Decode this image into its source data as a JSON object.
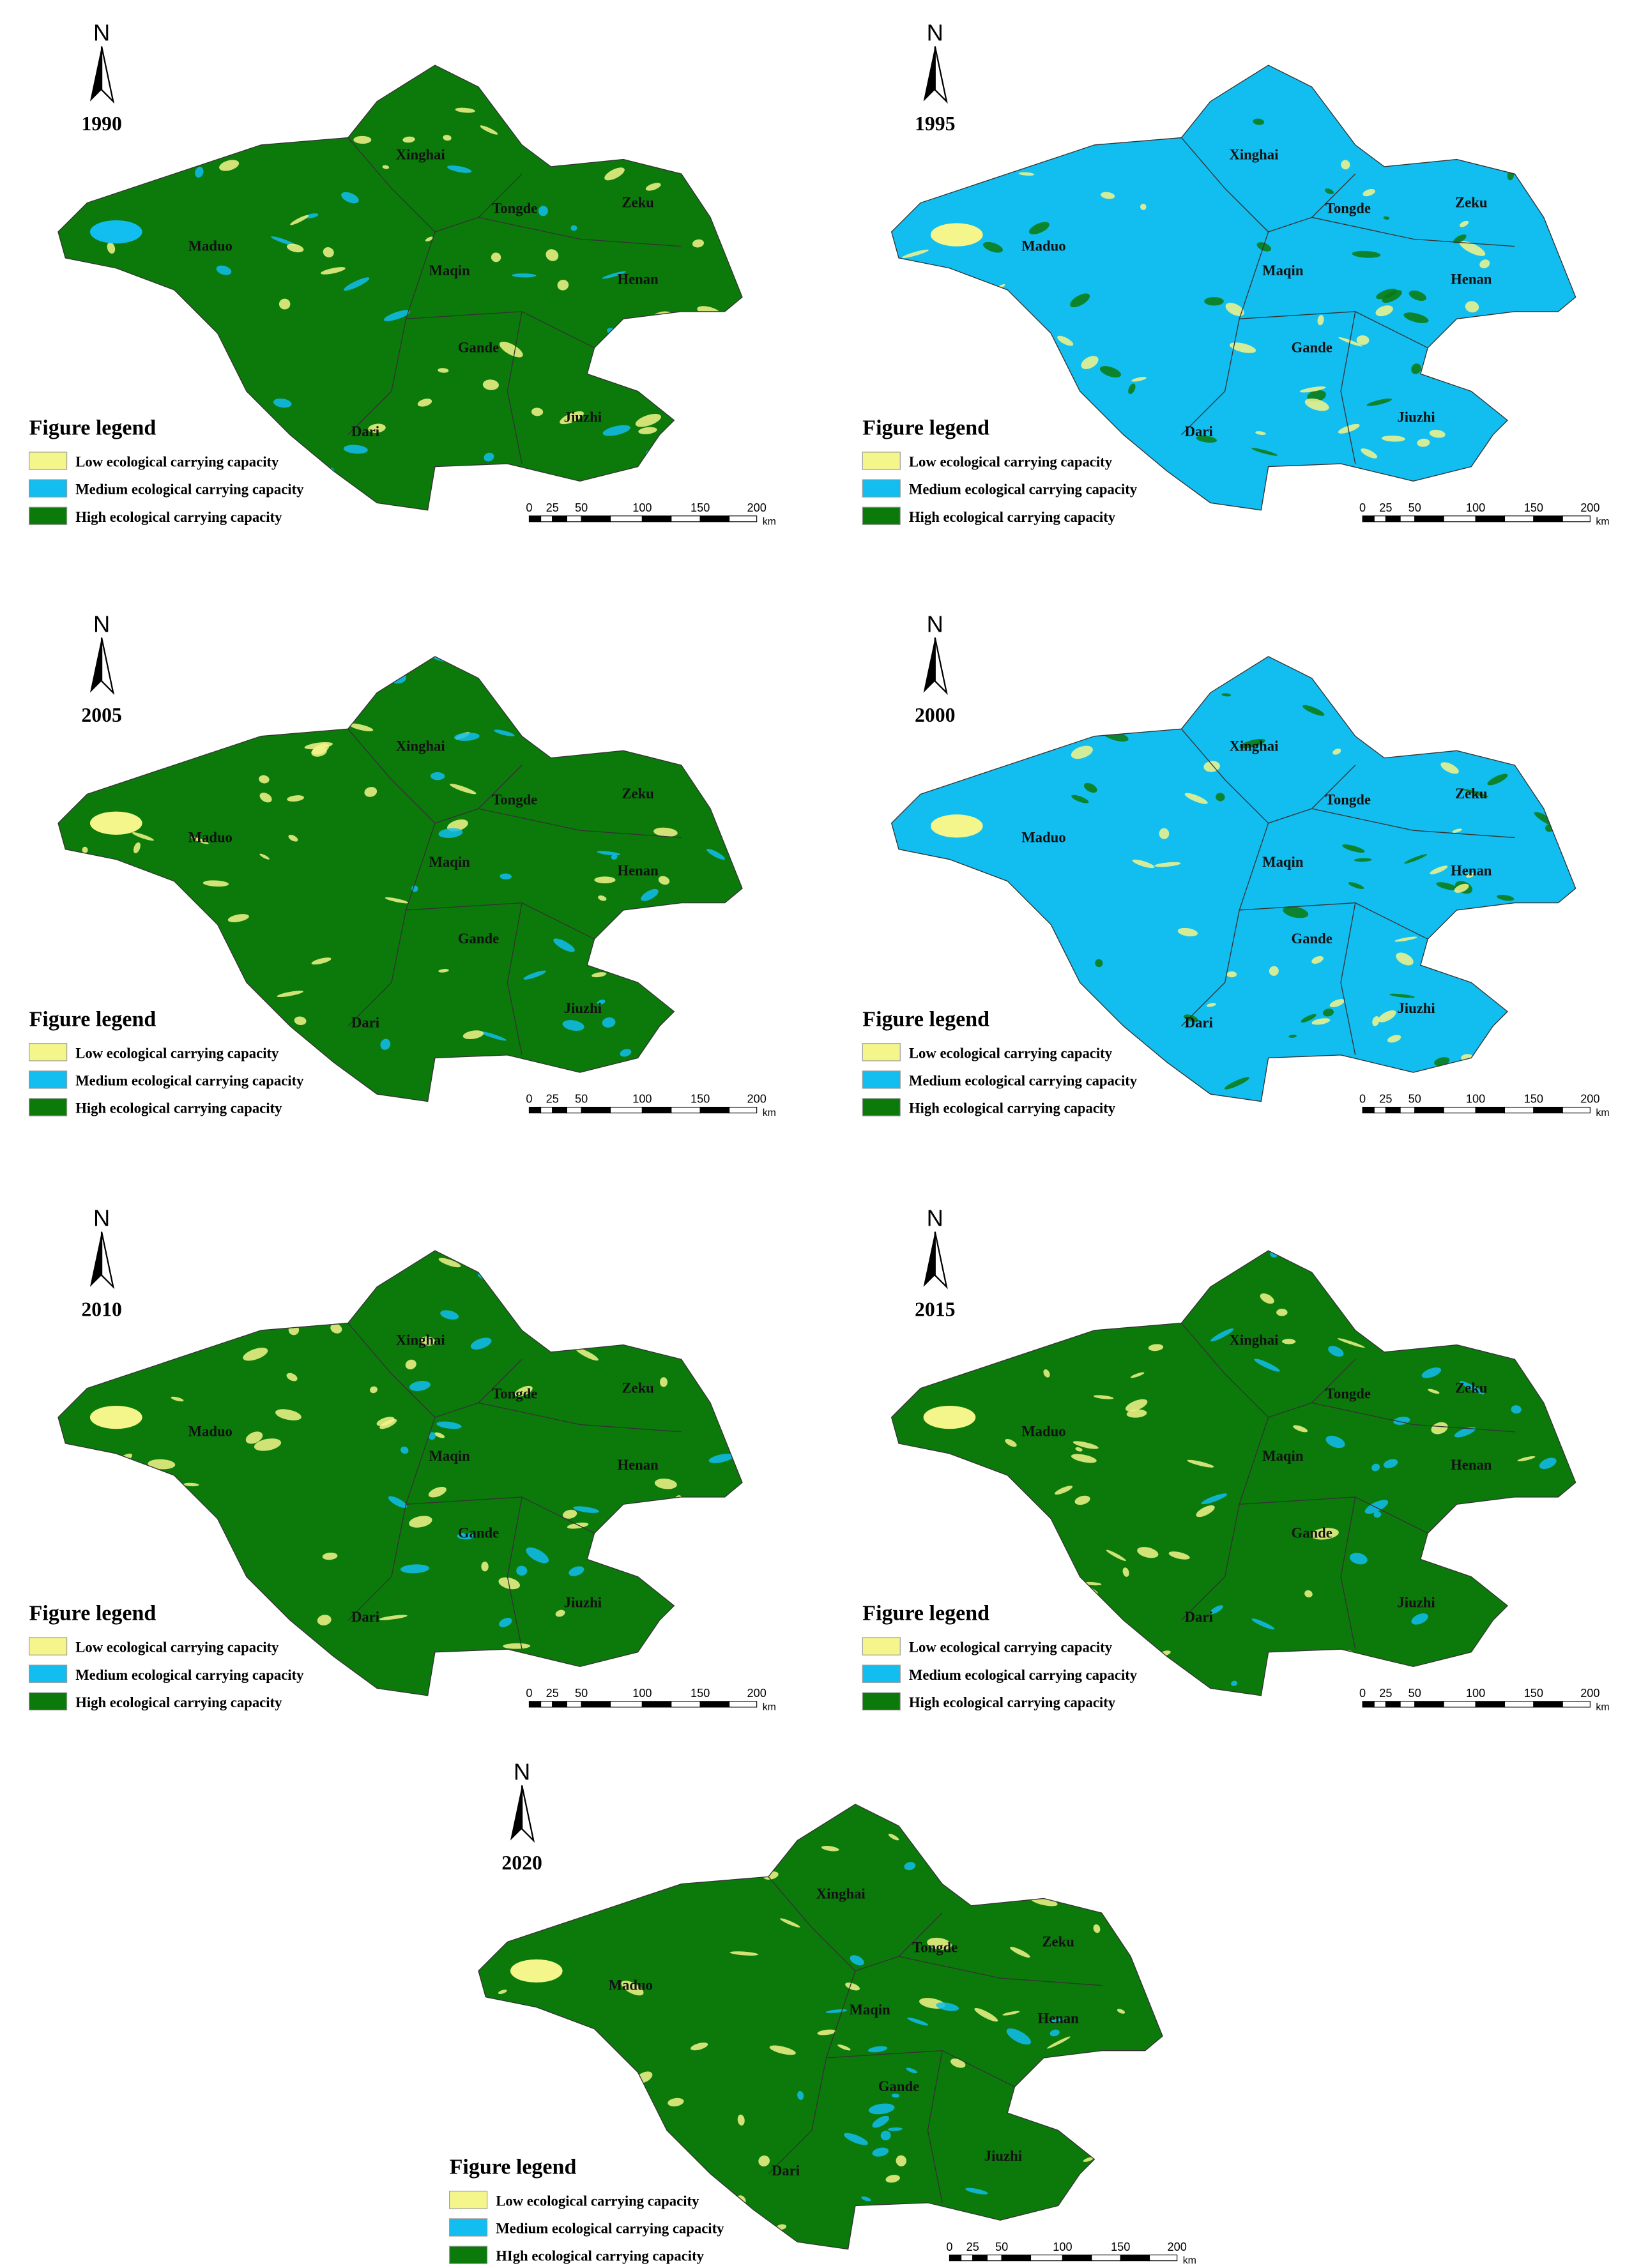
{
  "panels": [
    {
      "north": "N",
      "year": "1990",
      "places": [
        "Xinghai",
        "Tongde",
        "Zeku",
        "Maduo",
        "Maqin",
        "Henan",
        "Gande",
        "Dari",
        "Jiuzhi"
      ],
      "legend": {
        "title": "Figure legend",
        "items": [
          "Low ecological carrying capacity",
          "Medium ecological carrying capacity",
          "High ecological carrying capacity"
        ]
      },
      "scale": [
        "0",
        "25",
        "50",
        "100",
        "150",
        "200",
        "km"
      ]
    },
    {
      "north": "N",
      "year": "1995",
      "places": [
        "Xinghai",
        "Tongde",
        "Zeku",
        "Maduo",
        "Maqin",
        "Henan",
        "Gande",
        "Dari",
        "Jiuzhi"
      ],
      "legend": {
        "title": "Figure legend",
        "items": [
          "Low ecological carrying capacity",
          "Medium ecological carrying capacity",
          "High ecological carrying capacity"
        ]
      },
      "scale": [
        "0",
        "25",
        "50",
        "100",
        "150",
        "200",
        "km"
      ]
    },
    {
      "north": "N",
      "year": "2005",
      "places": [
        "Xinghai",
        "Tongde",
        "Zeku",
        "Maduo",
        "Maqin",
        "Henan",
        "Gande",
        "Dari",
        "Jiuzhi"
      ],
      "legend": {
        "title": "Figure legend",
        "items": [
          "Low ecological carrying capacity",
          "Medium ecological carrying capacity",
          "High ecological carrying capacity"
        ]
      },
      "scale": [
        "0",
        "25",
        "50",
        "100",
        "150",
        "200",
        "km"
      ]
    },
    {
      "north": "N",
      "year": "2000",
      "places": [
        "Xinghai",
        "Tongde",
        "Zeku",
        "Maduo",
        "Maqin",
        "Henan",
        "Gande",
        "Dari",
        "Jiuzhi"
      ],
      "legend": {
        "title": "Figure legend",
        "items": [
          "Low ecological carrying capacity",
          "Medium ecological carrying capacity",
          "High ecological carrying capacity"
        ]
      },
      "scale": [
        "0",
        "25",
        "50",
        "100",
        "150",
        "200",
        "km"
      ]
    },
    {
      "north": "N",
      "year": "2010",
      "places": [
        "Xinghai",
        "Tongde",
        "Zeku",
        "Maduo",
        "Maqin",
        "Henan",
        "Gande",
        "Dari",
        "Jiuzhi"
      ],
      "legend": {
        "title": "Figure legend",
        "items": [
          "Low ecological carrying capacity",
          "Medium ecological carrying capacity",
          "High ecological carrying capacity"
        ]
      },
      "scale": [
        "0",
        "25",
        "50",
        "100",
        "150",
        "200",
        "km"
      ]
    },
    {
      "north": "N",
      "year": "2015",
      "places": [
        "Xinghai",
        "Tongde",
        "Zeku",
        "Maduo",
        "Maqin",
        "Henan",
        "Gande",
        "Dari",
        "Jiuzhi"
      ],
      "legend": {
        "title": "Figure legend",
        "items": [
          "Low ecological carrying capacity",
          "Medium ecological carrying capacity",
          "High ecological carrying capacity"
        ]
      },
      "scale": [
        "0",
        "25",
        "50",
        "100",
        "150",
        "200",
        "km"
      ]
    },
    {
      "north": "N",
      "year": "2020",
      "places": [
        "Xinghai",
        "Tongde",
        "Zeku",
        "Maduo",
        "Maqin",
        "Henan",
        "Gande",
        "Dari",
        "Jiuzhi"
      ],
      "legend": {
        "title": "Figure legend",
        "items": [
          "Low ecological carrying capacity",
          "Medium ecological carrying capacity",
          "HIgh ecological carrying capacity"
        ]
      },
      "scale": [
        "0",
        "25",
        "50",
        "100",
        "150",
        "200",
        "km"
      ]
    }
  ]
}
